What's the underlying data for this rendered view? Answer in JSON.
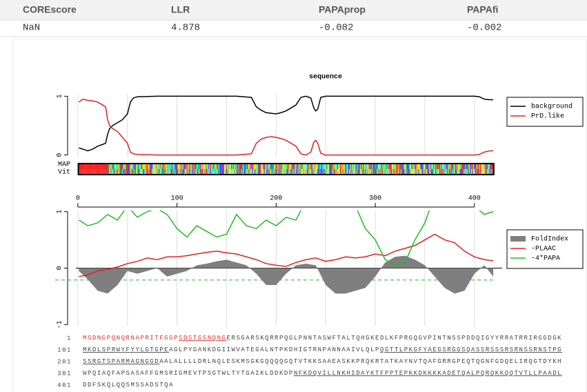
{
  "table": {
    "header": [
      "COREscore",
      "LLR",
      "PAPAprop",
      "PAPAfi"
    ],
    "rows": [
      [
        "NaN",
        "4.878",
        "-0.082",
        "-0.002"
      ]
    ]
  },
  "chart_data": [
    {
      "type": "line",
      "title": "sequence",
      "tracks": [
        "MAP",
        "Vit"
      ],
      "x": [
        1,
        5,
        10,
        15,
        20,
        25,
        28,
        30,
        32,
        35,
        40,
        45,
        50,
        53,
        56,
        60,
        80,
        100,
        120,
        140,
        160,
        175,
        180,
        185,
        190,
        195,
        200,
        205,
        210,
        215,
        220,
        225,
        230,
        235,
        238,
        240,
        242,
        245,
        250,
        300,
        350,
        400,
        405,
        410,
        415,
        419
      ],
      "series": [
        {
          "name": "background",
          "color": "#000000",
          "values": [
            0.12,
            0.1,
            0.07,
            0.1,
            0.15,
            0.18,
            0.2,
            0.35,
            0.45,
            0.5,
            0.55,
            0.6,
            0.7,
            0.9,
            0.97,
            0.99,
            1,
            1,
            1,
            1,
            1,
            0.98,
            0.82,
            0.76,
            0.72,
            0.71,
            0.7,
            0.72,
            0.75,
            0.8,
            0.85,
            0.98,
            1,
            0.97,
            0.8,
            0.75,
            0.78,
            0.98,
            1,
            1,
            1,
            1,
            0.99,
            0.95,
            0.94,
            0.94
          ]
        },
        {
          "name": "PrD.like",
          "color": "#e02020",
          "values": [
            0.9,
            0.95,
            0.93,
            0.92,
            0.9,
            0.85,
            0.82,
            0.6,
            0.5,
            0.45,
            0.4,
            0.3,
            0.2,
            0.05,
            0.02,
            0.01,
            0,
            0,
            0,
            0,
            0,
            0.02,
            0.2,
            0.27,
            0.3,
            0.31,
            0.3,
            0.28,
            0.25,
            0.2,
            0.15,
            0.02,
            0,
            0.05,
            0.22,
            0.25,
            0.2,
            0.03,
            0,
            0,
            0,
            0,
            0.01,
            0.05,
            0.07,
            0.07
          ]
        }
      ],
      "xlim": [
        -2,
        428
      ],
      "xticks": [
        0,
        100,
        200,
        300,
        400
      ],
      "xgrid": [
        0,
        50,
        100,
        150,
        200,
        250,
        300,
        350,
        400
      ],
      "ylim": [
        -0.04,
        1.04
      ],
      "yticks": [
        0,
        1
      ],
      "legend": "right"
    },
    {
      "type": "line",
      "x": [
        1,
        10,
        20,
        30,
        40,
        50,
        60,
        70,
        80,
        90,
        100,
        110,
        120,
        130,
        140,
        150,
        160,
        170,
        180,
        190,
        200,
        210,
        220,
        230,
        240,
        250,
        260,
        270,
        280,
        290,
        300,
        310,
        320,
        330,
        340,
        350,
        360,
        370,
        380,
        390,
        400,
        410,
        419
      ],
      "series": [
        {
          "name": "FoldIndex",
          "color": "#7f7f7f",
          "fill": true,
          "values": [
            -0.05,
            -0.2,
            -0.4,
            -0.45,
            -0.3,
            -0.05,
            -0.1,
            -0.05,
            0,
            -0.15,
            -0.1,
            -0.05,
            0.05,
            0.08,
            0.12,
            0.15,
            0.1,
            0.05,
            -0.1,
            -0.3,
            -0.3,
            -0.1,
            0.05,
            0.08,
            0.05,
            -0.3,
            -0.45,
            -0.45,
            -0.4,
            -0.35,
            -0.15,
            0.1,
            0.2,
            0.22,
            0.15,
            0.05,
            -0.15,
            -0.35,
            -0.45,
            -0.4,
            -0.1,
            0.05,
            -0.15
          ]
        },
        {
          "name": "-PLAAC",
          "color": "#e02020",
          "values": [
            -0.15,
            -0.12,
            -0.05,
            -0.02,
            0.02,
            0.08,
            0.12,
            0.18,
            0.15,
            0.2,
            0.2,
            0.22,
            0.25,
            0.28,
            0.3,
            0.27,
            0.25,
            0.2,
            0.15,
            0.08,
            0.05,
            0.03,
            0.1,
            0.15,
            0.18,
            0.12,
            0.15,
            0.2,
            0.18,
            0.2,
            0.25,
            0.22,
            0.3,
            0.35,
            0.4,
            0.5,
            0.6,
            0.5,
            0.45,
            0.3,
            0.2,
            0.15,
            0.13
          ]
        },
        {
          "name": "-4*PAPA",
          "color": "#22bb22",
          "values": [
            0.85,
            0.75,
            0.8,
            0.95,
            0.85,
            1.1,
            0.9,
            1.0,
            1.05,
            0.95,
            0.7,
            0.55,
            0.75,
            0.65,
            0.55,
            0.6,
            0.95,
            0.75,
            0.7,
            0.85,
            0.75,
            0.9,
            0.85,
            1.2,
            1.3,
            1.3,
            1.4,
            1.2,
            1.1,
            0.7,
            0.5,
            0.15,
            0.05,
            0.1,
            0.5,
            0.8,
            1.3,
            1.4,
            1.3,
            1.2,
            1.1,
            0.95,
            1.0
          ]
        }
      ],
      "threshold": {
        "value": -0.21,
        "color": "#22bb22"
      },
      "xlim": [
        -2,
        428
      ],
      "ylim": [
        -1.02,
        1.02
      ],
      "yticks": [
        -1,
        0,
        1
      ],
      "legend": "right"
    }
  ],
  "sequence": {
    "lines": [
      {
        "number": 1,
        "segments": [
          {
            "text": "MSDNGPQNQRNAPRITFGGP",
            "color": "#e03030"
          },
          {
            "text": "SDSTGSNQNG",
            "color": "#e03030",
            "underline": true
          },
          {
            "text": "ERSGARSKQRRPQGLPNNTASWFTALTQHGKEDLKFPRGQGVPINTNSSPDDQIGYYRRATRRIRGGDGK"
          }
        ]
      },
      {
        "number": 101,
        "segments": [
          {
            "text": "MKDLSPRWYFYYLGTGPE",
            "underline": true
          },
          {
            "text": "AGLPYGANKDGIIWVATEGALNTPKDHIGTRNPANNAAIVLQLP"
          },
          {
            "text": "QGTTLPKGFYAEGSRGGSQASSRSSSRSRNSSRNSTPG",
            "underline": true
          }
        ]
      },
      {
        "number": 201,
        "segments": [
          {
            "text": "SSRGTSPARMAGNGGD",
            "underline": true
          },
          {
            "text": "AALALLLLDRLNQLESKMSGKGQQQQGQTVTKKSAAEASKKPRQKRTATKAYNVTQAFGRRGPEQTQGNFGDQELIRQGTDYKH"
          }
        ]
      },
      {
        "number": 301,
        "segments": [
          {
            "text": "WPQIAQFAPSASAFFGMSRIGMEVTPSGTWLTYTGAIKLDDKDP"
          },
          {
            "text": "NFKDQVILLNKHIDAYKTFPPTEPKKDKKKKADETQALPQRQKKQQTVTLLPAADL",
            "underline": true
          }
        ]
      },
      {
        "number": 401,
        "segments": [
          {
            "text": "DDFSKQLQQSMSSADSTQA"
          }
        ]
      }
    ]
  }
}
